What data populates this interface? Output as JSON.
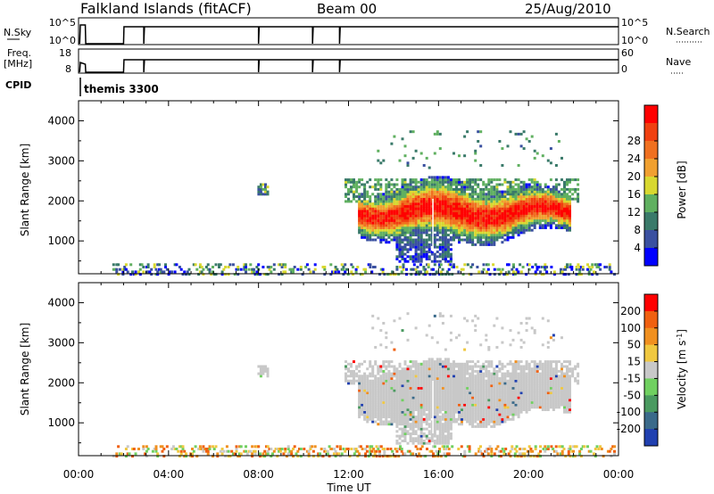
{
  "chart_data": [
    {
      "type": "line",
      "name": "status-panel",
      "header": {
        "left": "Falkland Islands (fitACF)",
        "center": "Beam 00",
        "right": "25/Aug/2010"
      },
      "panels": [
        {
          "left_label": "N.Sky",
          "left_ticks": [
            "10^5",
            "10^0"
          ],
          "right_ticks": [
            "10^5",
            "10^0"
          ],
          "right_label": "N.Search"
        },
        {
          "left_label": "Freq.",
          "left_unit": "[MHz]",
          "left_ticks": [
            "18",
            "8"
          ],
          "right_ticks": [
            "60",
            "0"
          ],
          "right_label": "Nave"
        }
      ],
      "cpid_label": "CPID",
      "cpid_value": "themis 3300"
    },
    {
      "type": "heatmap",
      "name": "power",
      "ylabel": "Slant Range [km]",
      "yticks": [
        1000,
        2000,
        3000,
        4000
      ],
      "ylim": [
        180,
        4500
      ],
      "xlim": [
        0,
        24
      ],
      "colorbar": {
        "label": "Power [dB]",
        "ticks": [
          "4",
          "8",
          "12",
          "16",
          "20",
          "24",
          "28"
        ],
        "colors": [
          "#0000ff",
          "#3a50a0",
          "#3a7a6a",
          "#60b060",
          "#d8d830",
          "#f0a030",
          "#f07020",
          "#f04010",
          "#ff0000"
        ]
      }
    },
    {
      "type": "heatmap",
      "name": "velocity",
      "ylabel": "Slant Range [km]",
      "yticks": [
        1000,
        2000,
        3000,
        4000
      ],
      "ylim": [
        180,
        4500
      ],
      "xlim": [
        0,
        24
      ],
      "colorbar": {
        "label": "Velocity [m s^-1]",
        "ticks": [
          "200",
          "100",
          "50",
          "15",
          "-15",
          "-50",
          "-100",
          "-200"
        ],
        "colors": [
          "#2040b0",
          "#3a6a8a",
          "#4a9a60",
          "#70d060",
          "#c8c8c8",
          "#f0c840",
          "#f09020",
          "#f06010",
          "#ff0000"
        ]
      }
    }
  ],
  "xaxis": {
    "ticks": [
      "00:00",
      "04:00",
      "08:00",
      "12:00",
      "16:00",
      "20:00",
      "00:00"
    ],
    "label": "Time UT"
  }
}
